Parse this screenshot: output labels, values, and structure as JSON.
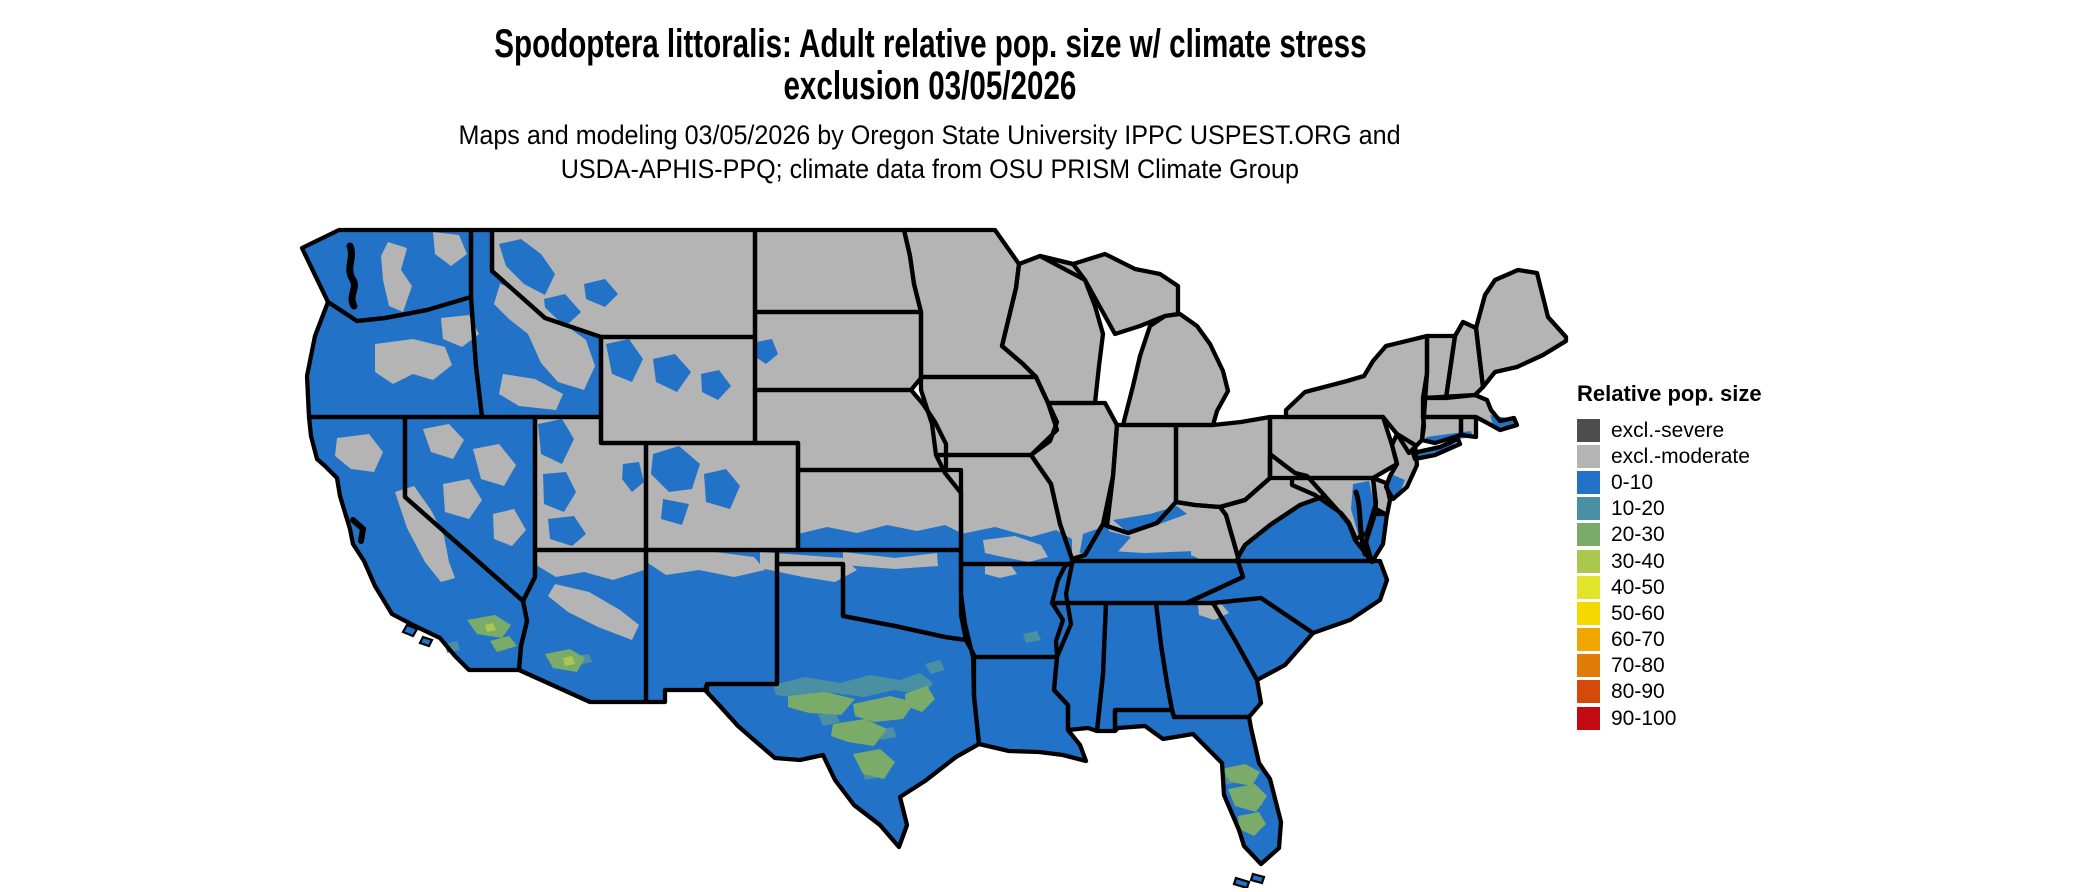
{
  "page": {
    "background": "#ffffff"
  },
  "title": {
    "line1": "Spodoptera littoralis: Adult relative pop. size w/ climate stress",
    "line2": "exclusion 03/05/2026"
  },
  "subtitle": {
    "line1": "Maps and modeling 03/05/2026 by Oregon State University IPPC USPEST.ORG and",
    "line2": "USDA-APHIS-PPQ; climate data from OSU PRISM Climate Group"
  },
  "legend": {
    "title": "Relative pop. size",
    "items": [
      {
        "label": "excl.-severe",
        "color": "#4d4d4d"
      },
      {
        "label": "excl.-moderate",
        "color": "#b4b4b4"
      },
      {
        "label": "0-10",
        "color": "#2273c8"
      },
      {
        "label": "10-20",
        "color": "#4a90a2"
      },
      {
        "label": "20-30",
        "color": "#7bab68"
      },
      {
        "label": "30-40",
        "color": "#aac74e"
      },
      {
        "label": "40-50",
        "color": "#e2e42b"
      },
      {
        "label": "50-60",
        "color": "#f5d800"
      },
      {
        "label": "60-70",
        "color": "#f0a800"
      },
      {
        "label": "70-80",
        "color": "#e27c09"
      },
      {
        "label": "80-90",
        "color": "#d5490d"
      },
      {
        "label": "90-100",
        "color": "#c20b10"
      }
    ]
  },
  "chart_data": {
    "type": "choropleth_map",
    "map_of": "Contiguous United States",
    "species": "Spodoptera littoralis",
    "variable": "Adult relative population size with climate stress exclusion",
    "date": "03/05/2026",
    "legend_position": "right",
    "palette": {
      "excl.-severe": "#4d4d4d",
      "excl.-moderate": "#b4b4b4",
      "0-10": "#2273c8",
      "10-20": "#4a90a2",
      "20-30": "#7bab68",
      "30-40": "#aac74e",
      "40-50": "#e2e42b",
      "50-60": "#f5d800",
      "60-70": "#f0a800",
      "70-80": "#e27c09",
      "80-90": "#d5490d",
      "90-100": "#c20b10"
    },
    "state_classes": {
      "WA": "0-10",
      "OR": "0-10",
      "CA": "0-10",
      "NV": "0-10",
      "ID": "0-10",
      "AZ": "0-10",
      "NM": "0-10",
      "TX": "0-10",
      "OK": "0-10",
      "AR": "0-10",
      "LA": "0-10",
      "MS": "0-10",
      "AL": "0-10",
      "GA": "0-10",
      "FL": "0-10",
      "SC": "0-10",
      "NC": "0-10",
      "TN": "0-10",
      "VA": "0-10",
      "MT": "excl.-moderate",
      "WY": "excl.-moderate",
      "UT": "excl.-moderate",
      "CO": "excl.-moderate",
      "ND": "excl.-moderate",
      "SD": "excl.-moderate",
      "NE": "excl.-moderate",
      "KS": "excl.-moderate",
      "MN": "excl.-moderate",
      "IA": "excl.-moderate",
      "MO": "excl.-moderate",
      "WI": "excl.-moderate",
      "IL": "excl.-moderate",
      "IN": "excl.-moderate",
      "OH": "excl.-moderate",
      "MI": "excl.-moderate",
      "KY": "excl.-moderate",
      "WV": "excl.-moderate",
      "PA": "excl.-moderate",
      "NY": "excl.-moderate",
      "NJ": "excl.-moderate",
      "MD": "excl.-moderate",
      "DE": "excl.-moderate",
      "CT": "excl.-moderate",
      "RI": "excl.-moderate",
      "MA": "excl.-moderate",
      "VT": "excl.-moderate",
      "NH": "excl.-moderate",
      "ME": "excl.-moderate"
    },
    "local_features": [
      {
        "area": "south Texas (Rio Grande valley and Gulf coastal bend)",
        "classes": [
          "10-20",
          "20-30"
        ]
      },
      {
        "area": "central and southern Florida peninsula",
        "classes": [
          "10-20",
          "20-30"
        ]
      },
      {
        "area": "southern California (coastal basins and Imperial valley)",
        "classes": [
          "10-20",
          "20-30",
          "30-40"
        ]
      },
      {
        "area": "southwestern Arizona (Yuma / lower Colorado river)",
        "classes": [
          "10-20",
          "20-30",
          "30-40"
        ]
      },
      {
        "area": "mountain West (Cascades, Sierra Nevada, Great Basin ranges, Rockies)",
        "classes": [
          "excl.-moderate patches within 0-10 and 0-10 patches within excl.-moderate"
        ]
      },
      {
        "area": "Kansas to Virginia latitude band",
        "classes": [
          "wavy boundary between 0-10 (south) and excl.-moderate (north)"
        ]
      },
      {
        "area": "Atlantic coastal fringe (Chesapeake shores, NJ, Long Island, s. New England coast)",
        "classes": [
          "0-10"
        ]
      }
    ]
  }
}
